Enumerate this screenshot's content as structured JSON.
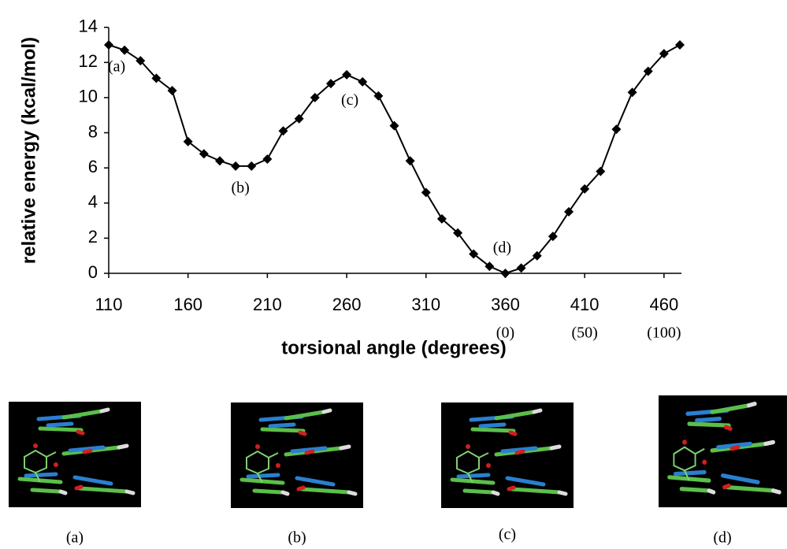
{
  "chart_data": {
    "type": "line",
    "x_label": "torsional angle (degrees)",
    "y_label": "relative energy (kcal/mol)",
    "x": [
      110,
      120,
      130,
      140,
      150,
      160,
      170,
      180,
      190,
      200,
      210,
      220,
      230,
      240,
      250,
      260,
      270,
      280,
      290,
      300,
      310,
      320,
      330,
      340,
      350,
      360,
      370,
      380,
      390,
      400,
      410,
      420,
      430,
      440,
      450,
      460,
      470
    ],
    "series": [
      {
        "color": "#000000",
        "values": [
          13.0,
          12.7,
          12.1,
          11.1,
          10.4,
          7.5,
          6.8,
          6.4,
          6.1,
          6.1,
          6.5,
          8.1,
          8.8,
          10.0,
          10.8,
          11.3,
          10.9,
          10.1,
          8.4,
          6.4,
          4.6,
          3.1,
          2.3,
          1.1,
          0.4,
          0,
          0.3,
          1.0,
          2.1,
          3.5,
          4.8,
          5.8,
          8.2,
          10.3,
          11.5,
          12.5,
          13.0
        ]
      }
    ],
    "xlim": [
      110,
      470
    ],
    "ylim": [
      0,
      14
    ],
    "xticks": [
      110,
      160,
      210,
      260,
      310,
      360,
      410,
      460
    ],
    "xticks2": [
      {
        "value": 360,
        "label": "(0)"
      },
      {
        "value": 410,
        "label": "(50)"
      },
      {
        "value": 460,
        "label": "(100)"
      }
    ],
    "yticks": [
      0,
      2,
      4,
      6,
      8,
      10,
      12,
      14
    ],
    "grid": false,
    "annotations": [
      {
        "text": "(a)",
        "x": 115,
        "y": 11.7
      },
      {
        "text": "(b)",
        "x": 193,
        "y": 4.8
      },
      {
        "text": "(c)",
        "x": 262,
        "y": 9.8
      },
      {
        "text": "(d)",
        "x": 358,
        "y": 1.4
      }
    ]
  },
  "panels": [
    "(a)",
    "(b)",
    "(c)",
    "(d)"
  ]
}
